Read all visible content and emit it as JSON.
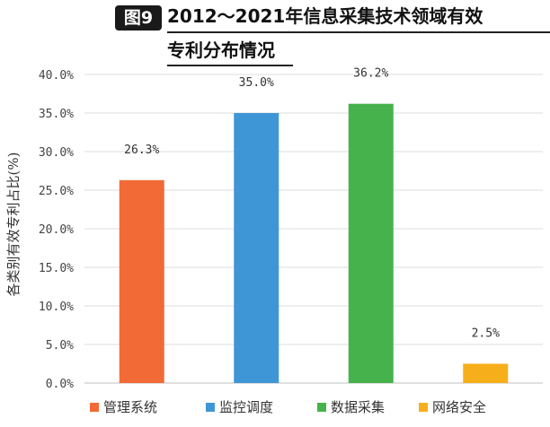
{
  "figure": {
    "badge": "图9",
    "title_line1": "2012～2021年信息采集技术领域有效",
    "title_line2": "专利分布情况"
  },
  "chart_data": {
    "type": "bar",
    "title": "2012～2021年信息采集技术领域有效专利分布情况",
    "ylabel": "各类别有效专利占比(%)",
    "xlabel": "",
    "ylim": [
      0,
      40
    ],
    "ytick_step": 5,
    "ytick_labels": [
      "0.0%",
      "5.0%",
      "10.0%",
      "15.0%",
      "20.0%",
      "25.0%",
      "30.0%",
      "35.0%",
      "40.0%"
    ],
    "categories": [
      "管理系统",
      "监控调度",
      "数据采集",
      "网络安全"
    ],
    "values": [
      26.3,
      35.0,
      36.2,
      2.5
    ],
    "data_labels": [
      "26.3%",
      "35.0%",
      "36.2%",
      "2.5%"
    ],
    "colors": [
      "#f26a35",
      "#3f96d6",
      "#46b24c",
      "#f7ae1b"
    ],
    "grid": true,
    "legend": "bottom"
  }
}
